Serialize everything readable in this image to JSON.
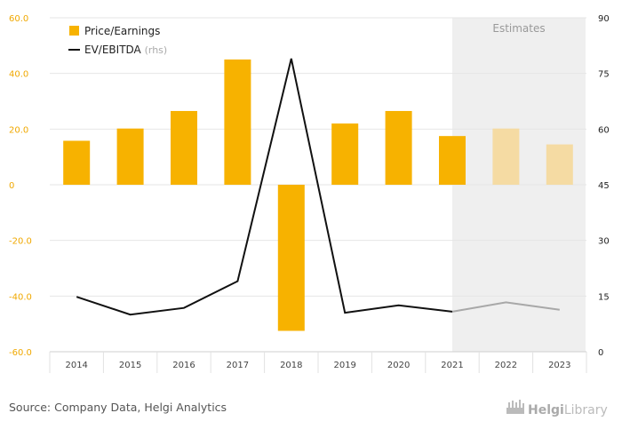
{
  "colors": {
    "bar_actual": "#f7b200",
    "bar_estimate": "#f5dba3",
    "line_actual": "#111111",
    "line_estimate": "#a8a8a8",
    "estimate_band": "#efefef"
  },
  "chart_data": {
    "type": "bar",
    "categories": [
      "2014",
      "2015",
      "2016",
      "2017",
      "2018",
      "2019",
      "2020",
      "2021",
      "2022",
      "2023"
    ],
    "estimate_start_category": "2022",
    "estimate_band_label": "Estimates",
    "legend_placement": "top-left",
    "left_axis": {
      "ylim": [
        -60,
        60
      ],
      "ticks": [
        60,
        40,
        20,
        0,
        -20,
        -40,
        -60
      ],
      "tick_labels": [
        "60.0",
        "40.0",
        "20.0",
        "0",
        "-20.0",
        "-40.0",
        "-60.0"
      ]
    },
    "right_axis": {
      "ylim": [
        0,
        90
      ],
      "ticks": [
        90,
        75,
        60,
        45,
        30,
        15,
        0
      ],
      "tick_labels": [
        "90",
        "75",
        "60",
        "45",
        "30",
        "15",
        "0"
      ]
    },
    "series": [
      {
        "name": "Price/Earnings",
        "kind": "bar",
        "axis": "left",
        "values": [
          15.8,
          20.2,
          26.5,
          45.0,
          -52.5,
          22.0,
          26.5,
          17.5,
          20.2,
          14.5
        ]
      },
      {
        "name": "EV/EBITDA",
        "name_suffix": "(rhs)",
        "kind": "line",
        "axis": "right",
        "values": [
          14.8,
          10.0,
          11.8,
          19.0,
          79.0,
          10.5,
          12.5,
          10.8,
          13.3,
          11.3
        ]
      }
    ]
  },
  "footer": {
    "source": "Source: Company Data, Helgi Analytics",
    "brand_main": "Helgi",
    "brand_sub": "Library",
    "brand_icon": "helgi-library-logo-icon"
  }
}
